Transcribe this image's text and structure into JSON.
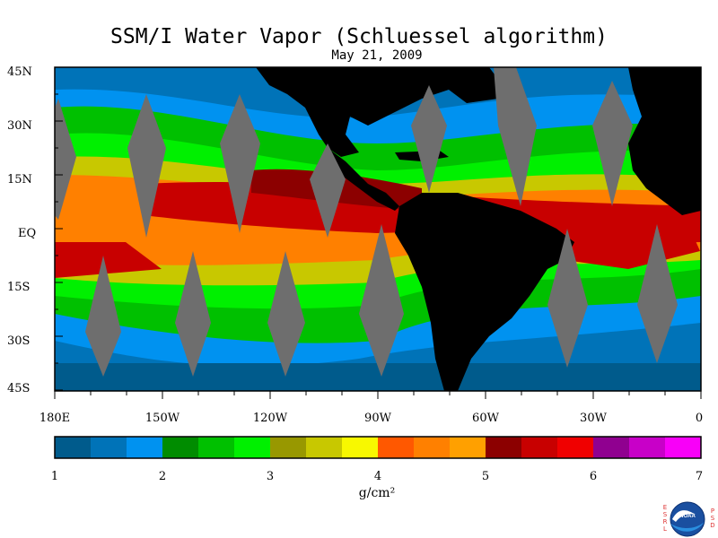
{
  "title": "SSM/I Water Vapor (Schluessel algorithm)",
  "date": "May 21, 2009",
  "y_axis_labels": [
    "45N",
    "30N",
    "15N",
    "EQ",
    "15S",
    "30S",
    "45S"
  ],
  "x_axis_labels": [
    "180E",
    "150W",
    "120W",
    "90W",
    "60W",
    "30W",
    "0"
  ],
  "colorbar": {
    "colors": [
      "#005b8c",
      "#0073b8",
      "#0092f0",
      "#008c00",
      "#00c000",
      "#00f000",
      "#989800",
      "#c8c800",
      "#f8f800",
      "#ff5800",
      "#ff8000",
      "#ffa000",
      "#8c0000",
      "#c80000",
      "#f00000",
      "#900090",
      "#c800c8",
      "#f800f8"
    ],
    "tick_labels": [
      "1",
      "2",
      "3",
      "4",
      "5",
      "6",
      "7"
    ],
    "unit": "g/cm²"
  },
  "logo": {
    "name": "NOAA",
    "left_letters": "ESRL",
    "right_letters": "PSD"
  }
}
